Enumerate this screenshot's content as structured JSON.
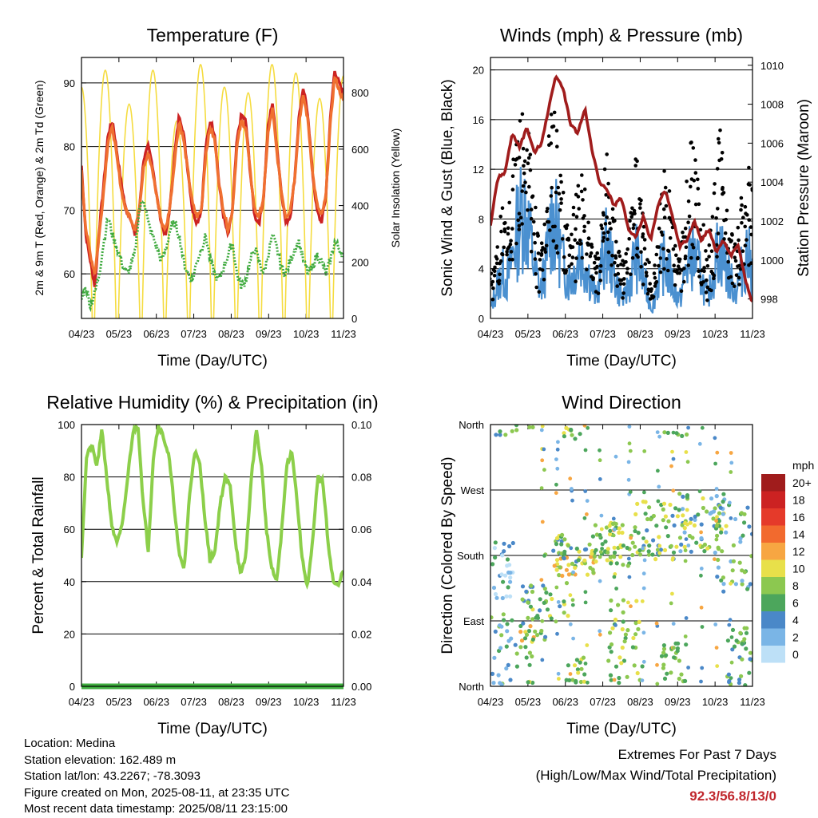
{
  "chart_data": [
    {
      "type": "line",
      "title": "Temperature (F)",
      "xlabel": "Time (Day/UTC)",
      "ylabel": "2m & 9m T (Red, Orange) & 2m Td (Green)",
      "y2label": "Solar Insolation (Yellow)",
      "x_ticks": [
        "04/23",
        "05/23",
        "06/23",
        "07/23",
        "08/23",
        "09/23",
        "10/23",
        "11/23"
      ],
      "ylim": [
        53,
        94
      ],
      "y_ticks": [
        60,
        70,
        80,
        90
      ],
      "y2lim": [
        0,
        925
      ],
      "y2_ticks": [
        0,
        200,
        400,
        600,
        800
      ],
      "grid": true,
      "series": [
        {
          "name": "2m T",
          "color": "#cc2222",
          "values": [
            77,
            66,
            62,
            58,
            67,
            74,
            82,
            84,
            79,
            74,
            70,
            69,
            66,
            70,
            78,
            80,
            77,
            72,
            68,
            66,
            71,
            79,
            85,
            82,
            76,
            70,
            68,
            70,
            80,
            84,
            82,
            74,
            69,
            66,
            70,
            81,
            85,
            84,
            76,
            69,
            68,
            72,
            83,
            87,
            80,
            73,
            68,
            69,
            75,
            85,
            89,
            85,
            76,
            70,
            68,
            72,
            84,
            92,
            90,
            88
          ]
        },
        {
          "name": "9m T",
          "color": "#f07030",
          "values": [
            76,
            67,
            63,
            60,
            66,
            73,
            81,
            83,
            78,
            73,
            70,
            69,
            67,
            70,
            77,
            79,
            76,
            72,
            68,
            67,
            71,
            78,
            84,
            81,
            76,
            71,
            69,
            70,
            79,
            83,
            81,
            74,
            70,
            67,
            70,
            80,
            84,
            83,
            76,
            70,
            69,
            72,
            82,
            86,
            79,
            73,
            69,
            70,
            75,
            84,
            88,
            84,
            76,
            71,
            69,
            72,
            83,
            91,
            89,
            87
          ]
        },
        {
          "name": "2m Td",
          "color": "#3faa3f",
          "values": [
            56,
            58,
            55,
            57,
            60,
            65,
            69,
            66,
            64,
            62,
            60,
            61,
            63,
            70,
            72,
            68,
            66,
            64,
            62,
            64,
            67,
            68,
            66,
            62,
            60,
            59,
            62,
            64,
            66,
            62,
            60,
            59,
            61,
            63,
            65,
            60,
            58,
            59,
            62,
            64,
            62,
            60,
            63,
            66,
            64,
            61,
            60,
            62,
            64,
            65,
            62,
            60,
            61,
            63,
            62,
            60,
            62,
            65,
            64,
            63
          ]
        },
        {
          "name": "Solar Insolation",
          "color": "#f5dc40",
          "axis": "y2",
          "values": [
            820,
            50,
            880,
            40,
            760,
            30,
            880,
            60,
            700,
            50,
            900,
            60,
            820,
            40,
            800,
            50,
            900,
            40,
            870,
            40,
            780,
            40,
            860
          ]
        }
      ]
    },
    {
      "type": "line",
      "title": "Winds (mph) & Pressure (mb)",
      "xlabel": "Time (Day/UTC)",
      "ylabel": "Sonic Wind & Gust (Blue, Black)",
      "y2label": "Station Pressure (Maroon)",
      "x_ticks": [
        "04/23",
        "05/23",
        "06/23",
        "07/23",
        "08/23",
        "09/23",
        "10/23",
        "11/23"
      ],
      "ylim": [
        0,
        21
      ],
      "y_ticks": [
        0,
        4,
        8,
        12,
        16,
        20
      ],
      "y2lim": [
        997.0,
        1010.4
      ],
      "y2_ticks": [
        998,
        1000,
        1002,
        1004,
        1006,
        1008,
        1010
      ],
      "grid": true,
      "series": [
        {
          "name": "Wind",
          "color": "#4a90d0",
          "values": [
            1,
            3,
            5,
            4,
            7,
            10,
            12,
            9,
            5,
            3,
            6,
            11,
            9,
            6,
            4,
            5,
            7,
            6,
            4,
            2,
            6,
            8,
            5,
            3,
            2,
            4,
            7,
            5,
            3,
            1,
            4,
            6,
            5,
            3,
            2,
            5,
            7,
            6,
            4,
            2,
            5,
            8,
            6,
            4,
            3,
            5,
            7,
            5
          ]
        },
        {
          "name": "Gust",
          "color": "#000000",
          "values": [
            3,
            5,
            8,
            6,
            11,
            15,
            18,
            13,
            8,
            5,
            9,
            16,
            14,
            9,
            6,
            8,
            11,
            10,
            7,
            4,
            9,
            13,
            8,
            5,
            4,
            7,
            12,
            9,
            6,
            2,
            7,
            11,
            9,
            6,
            4,
            8,
            13,
            11,
            7,
            4,
            8,
            14,
            11,
            7,
            5,
            9,
            13,
            9
          ]
        },
        {
          "name": "Station Pressure",
          "color": "#a01c1c",
          "axis": "y2",
          "values": [
            1001.8,
            1004.2,
            1004.5,
            1006.5,
            1005.8,
            1006.8,
            1005.5,
            1006.0,
            1007.8,
            1009.5,
            1008.8,
            1007.0,
            1006.5,
            1007.8,
            1005.5,
            1004.0,
            1003.6,
            1002.8,
            1003.2,
            1001.5,
            1001.2,
            1002.2,
            1001.0,
            1002.8,
            1003.6,
            1002.2,
            1000.7,
            1001.0,
            1002.0,
            1001.0,
            1001.6,
            1000.4,
            1001.0,
            1000.2,
            1000.8,
            999.0,
            997.8
          ]
        }
      ]
    },
    {
      "type": "line",
      "title": "Relative Humidity (%) & Precipitation (in)",
      "xlabel": "Time (Day/UTC)",
      "ylabel": "Percent & Total Rainfall",
      "x_ticks": [
        "04/23",
        "05/23",
        "06/23",
        "07/23",
        "08/23",
        "09/23",
        "10/23",
        "11/23"
      ],
      "ylim": [
        0,
        100
      ],
      "y_ticks": [
        0,
        20,
        40,
        60,
        80,
        100
      ],
      "y2lim": [
        0,
        0.1
      ],
      "y2_ticks": [
        "0.00",
        "0.02",
        "0.04",
        "0.06",
        "0.08",
        "0.10"
      ],
      "grid": true,
      "series": [
        {
          "name": "Relative Humidity",
          "color": "#8ccf4a",
          "values": [
            50,
            88,
            92,
            84,
            98,
            78,
            60,
            55,
            62,
            80,
            97,
            100,
            70,
            52,
            88,
            100,
            95,
            88,
            70,
            50,
            45,
            72,
            90,
            85,
            65,
            48,
            52,
            70,
            80,
            76,
            55,
            42,
            50,
            78,
            98,
            85,
            60,
            45,
            40,
            60,
            85,
            90,
            70,
            48,
            38,
            55,
            80,
            78,
            55,
            40,
            38,
            45
          ]
        },
        {
          "name": "Total Precipitation",
          "color": "#3fae3f",
          "axis": "y2",
          "values": [
            0,
            0
          ]
        }
      ]
    },
    {
      "type": "scatter",
      "title": "Wind Direction",
      "xlabel": "Time (Day/UTC)",
      "ylabel": "Direction (Colored By Speed)",
      "x_ticks": [
        "04/23",
        "05/23",
        "06/23",
        "07/23",
        "08/23",
        "09/23",
        "10/23",
        "11/23"
      ],
      "y_ticks": [
        "North",
        "East",
        "South",
        "West",
        "North"
      ],
      "ylim": [
        0,
        360
      ],
      "grid": true,
      "legend": {
        "title": "mph",
        "labels": [
          "20+",
          "18",
          "16",
          "14",
          "12",
          "10",
          "8",
          "6",
          "4",
          "2",
          "0"
        ],
        "colors": [
          "#a01c1c",
          "#cc2222",
          "#e53a2a",
          "#f26a2e",
          "#f7a642",
          "#e8e04a",
          "#8cc850",
          "#4ca65c",
          "#4a88c8",
          "#7ab5e6",
          "#bde0f7"
        ]
      }
    }
  ],
  "info": {
    "location": "Location: Medina",
    "elevation": "Station elevation: 162.489 m",
    "latlon": "Station lat/lon: 43.2267; -78.3093",
    "created": "Figure created on Mon, 2025-08-11, at 23:35 UTC",
    "recent": "Most recent data timestamp: 2025/08/11 23:15:00"
  },
  "extremes": {
    "title": "Extremes For Past 7 Days",
    "subtitle": "(High/Low/Max Wind/Total Precipitation)",
    "values": "92.3/56.8/13/0"
  }
}
